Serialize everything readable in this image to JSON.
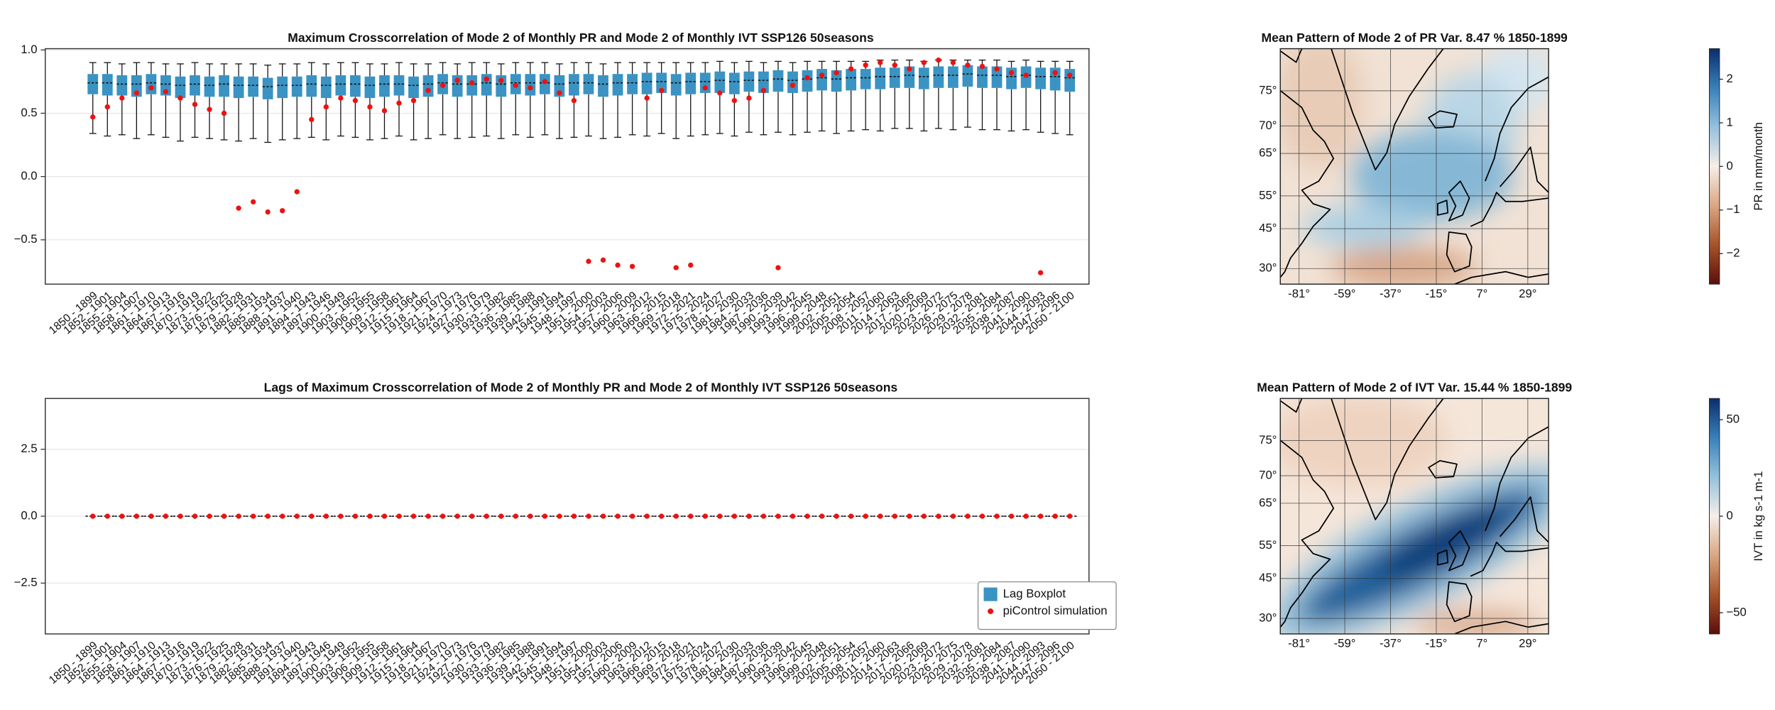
{
  "chart_data": [
    {
      "type": "boxplot",
      "title": "Maximum  Crosscorrelation of Mode 2 of Monthly PR and Mode 2 of Monthly IVT SSP126 50seasons",
      "categories": [
        "1850 - 1899",
        "1852 - 1901",
        "1855 - 1904",
        "1858 - 1907",
        "1861 - 1910",
        "1864 - 1913",
        "1867 - 1916",
        "1870 - 1919",
        "1873 - 1922",
        "1876 - 1925",
        "1879 - 1928",
        "1882 - 1931",
        "1885 - 1934",
        "1888 - 1937",
        "1891 - 1940",
        "1894 - 1943",
        "1897 - 1946",
        "1900 - 1949",
        "1903 - 1952",
        "1906 - 1955",
        "1909 - 1958",
        "1912 - 1961",
        "1915 - 1964",
        "1918 - 1967",
        "1921 - 1970",
        "1924 - 1973",
        "1927 - 1976",
        "1930 - 1979",
        "1933 - 1982",
        "1936 - 1985",
        "1939 - 1988",
        "1942 - 1991",
        "1945 - 1994",
        "1948 - 1997",
        "1951 - 2000",
        "1954 - 2003",
        "1957 - 2006",
        "1960 - 2009",
        "1963 - 2012",
        "1966 - 2015",
        "1969 - 2018",
        "1972 - 2021",
        "1975 - 2024",
        "1978 - 2027",
        "1981 - 2030",
        "1984 - 2033",
        "1987 - 2036",
        "1990 - 2039",
        "1993 - 2042",
        "1996 - 2045",
        "1999 - 2048",
        "2002 - 2051",
        "2005 - 2054",
        "2008 - 2057",
        "2011 - 2060",
        "2014 - 2063",
        "2017 - 2066",
        "2020 - 2069",
        "2023 - 2072",
        "2026 - 2075",
        "2029 - 2078",
        "2032 - 2081",
        "2035 - 2084",
        "2038 - 2087",
        "2041 - 2090",
        "2044 - 2093",
        "2047 - 2096",
        "2050 - 2100"
      ],
      "boxplot": {
        "color": "#3a93c3",
        "whislo": [
          0.34,
          0.32,
          0.33,
          0.3,
          0.33,
          0.31,
          0.28,
          0.31,
          0.3,
          0.29,
          0.28,
          0.3,
          0.27,
          0.29,
          0.3,
          0.31,
          0.29,
          0.32,
          0.31,
          0.29,
          0.3,
          0.32,
          0.29,
          0.3,
          0.33,
          0.3,
          0.31,
          0.32,
          0.3,
          0.33,
          0.31,
          0.33,
          0.3,
          0.31,
          0.32,
          0.3,
          0.31,
          0.33,
          0.32,
          0.34,
          0.3,
          0.32,
          0.33,
          0.34,
          0.32,
          0.35,
          0.33,
          0.35,
          0.33,
          0.35,
          0.36,
          0.34,
          0.36,
          0.37,
          0.36,
          0.38,
          0.38,
          0.36,
          0.38,
          0.37,
          0.39,
          0.37,
          0.37,
          0.36,
          0.37,
          0.35,
          0.34,
          0.33
        ],
        "q1": [
          0.65,
          0.64,
          0.64,
          0.63,
          0.65,
          0.64,
          0.62,
          0.64,
          0.63,
          0.63,
          0.62,
          0.63,
          0.61,
          0.62,
          0.63,
          0.63,
          0.62,
          0.64,
          0.63,
          0.62,
          0.63,
          0.64,
          0.62,
          0.63,
          0.65,
          0.63,
          0.64,
          0.64,
          0.63,
          0.65,
          0.64,
          0.65,
          0.63,
          0.64,
          0.65,
          0.63,
          0.64,
          0.65,
          0.65,
          0.66,
          0.64,
          0.65,
          0.66,
          0.66,
          0.65,
          0.67,
          0.66,
          0.67,
          0.66,
          0.67,
          0.68,
          0.67,
          0.68,
          0.69,
          0.69,
          0.7,
          0.7,
          0.69,
          0.7,
          0.7,
          0.71,
          0.7,
          0.7,
          0.69,
          0.7,
          0.69,
          0.68,
          0.67
        ],
        "median": [
          0.74,
          0.74,
          0.73,
          0.73,
          0.74,
          0.73,
          0.72,
          0.73,
          0.72,
          0.73,
          0.72,
          0.72,
          0.71,
          0.72,
          0.72,
          0.73,
          0.72,
          0.73,
          0.73,
          0.72,
          0.73,
          0.73,
          0.72,
          0.73,
          0.74,
          0.73,
          0.73,
          0.74,
          0.73,
          0.74,
          0.74,
          0.74,
          0.73,
          0.74,
          0.74,
          0.73,
          0.74,
          0.74,
          0.75,
          0.75,
          0.74,
          0.75,
          0.75,
          0.76,
          0.75,
          0.76,
          0.76,
          0.77,
          0.76,
          0.77,
          0.78,
          0.77,
          0.78,
          0.78,
          0.79,
          0.79,
          0.8,
          0.79,
          0.8,
          0.8,
          0.81,
          0.8,
          0.8,
          0.79,
          0.8,
          0.79,
          0.79,
          0.78
        ],
        "q3": [
          0.81,
          0.81,
          0.8,
          0.8,
          0.81,
          0.8,
          0.79,
          0.8,
          0.79,
          0.8,
          0.79,
          0.79,
          0.78,
          0.79,
          0.79,
          0.8,
          0.79,
          0.8,
          0.8,
          0.79,
          0.8,
          0.8,
          0.79,
          0.8,
          0.81,
          0.8,
          0.8,
          0.81,
          0.8,
          0.81,
          0.81,
          0.81,
          0.8,
          0.81,
          0.81,
          0.8,
          0.81,
          0.81,
          0.82,
          0.82,
          0.81,
          0.82,
          0.82,
          0.83,
          0.82,
          0.83,
          0.83,
          0.84,
          0.83,
          0.84,
          0.85,
          0.84,
          0.85,
          0.85,
          0.86,
          0.86,
          0.87,
          0.86,
          0.87,
          0.87,
          0.88,
          0.87,
          0.87,
          0.86,
          0.87,
          0.86,
          0.86,
          0.85
        ],
        "whishi": [
          0.9,
          0.9,
          0.89,
          0.9,
          0.9,
          0.89,
          0.89,
          0.9,
          0.89,
          0.89,
          0.89,
          0.89,
          0.88,
          0.89,
          0.89,
          0.9,
          0.89,
          0.9,
          0.9,
          0.89,
          0.89,
          0.9,
          0.89,
          0.89,
          0.9,
          0.89,
          0.9,
          0.9,
          0.89,
          0.9,
          0.9,
          0.9,
          0.89,
          0.9,
          0.9,
          0.89,
          0.9,
          0.9,
          0.9,
          0.9,
          0.9,
          0.9,
          0.9,
          0.91,
          0.9,
          0.91,
          0.9,
          0.91,
          0.9,
          0.91,
          0.91,
          0.91,
          0.91,
          0.91,
          0.92,
          0.92,
          0.92,
          0.91,
          0.92,
          0.92,
          0.92,
          0.92,
          0.92,
          0.91,
          0.92,
          0.91,
          0.91,
          0.91
        ]
      },
      "points": {
        "color": "#ee1111",
        "values": [
          0.47,
          0.55,
          0.62,
          0.66,
          0.7,
          0.67,
          0.62,
          0.57,
          0.53,
          0.5,
          -0.25,
          -0.2,
          -0.28,
          -0.27,
          -0.12,
          0.45,
          0.55,
          0.62,
          0.6,
          0.55,
          0.52,
          0.58,
          0.6,
          0.68,
          0.72,
          0.76,
          0.74,
          0.77,
          0.76,
          0.72,
          0.7,
          0.75,
          0.66,
          0.6,
          -0.67,
          -0.66,
          -0.7,
          -0.71,
          0.62,
          0.68,
          -0.72,
          -0.7,
          0.7,
          0.66,
          0.6,
          0.62,
          0.68,
          -0.72,
          0.72,
          0.78,
          0.8,
          0.82,
          0.85,
          0.88,
          0.9,
          0.88,
          0.85,
          0.9,
          0.92,
          0.9,
          0.88,
          0.87,
          0.85,
          0.82,
          0.8,
          -0.76,
          0.82,
          0.8
        ]
      },
      "ylim": [
        -0.85,
        1.01
      ],
      "yticks": [
        {
          "value": 1,
          "label": "1.0"
        },
        0.5,
        {
          "value": 0,
          "label": "0.0"
        },
        {
          "value": -0.5,
          "label": "−0.5"
        }
      ],
      "grid": true
    },
    {
      "type": "map",
      "title": "Mean Pattern of Mode 2 of PR Var. 8.47 % 1850-1899",
      "xlim": [
        -90,
        39
      ],
      "ylim": [
        23.4,
        79.4
      ],
      "xticks": [
        {
          "value": -81,
          "label": "-81°"
        },
        {
          "value": -59,
          "label": "-59°"
        },
        {
          "value": -37,
          "label": "-37°"
        },
        {
          "value": -15,
          "label": "-15°"
        },
        {
          "value": 7,
          "label": "7°"
        },
        {
          "value": 29,
          "label": "29°"
        }
      ],
      "yticks": [
        {
          "value": 75,
          "label": "75°"
        },
        {
          "value": 70,
          "label": "70°"
        },
        {
          "value": 65,
          "label": "65°"
        },
        {
          "value": 55,
          "label": "55°"
        },
        {
          "value": 45,
          "label": "45°"
        },
        {
          "value": 30,
          "label": "30°"
        }
      ],
      "colorbar": {
        "label": "PR in mm/month",
        "lim": [
          -2.7,
          2.7
        ],
        "ticks": [
          2,
          1,
          0,
          {
            "value": -1,
            "label": "−1"
          },
          {
            "value": -2,
            "label": "−2"
          }
        ],
        "colormap": [
          "#5a0f0c",
          "#a4532a",
          "#d9a784",
          "#f6eee8",
          "#95c1dc",
          "#3a80b9",
          "#0b2d6b"
        ]
      }
    },
    {
      "type": "boxplot",
      "title": "Lags of Maximum  Crosscorrelation of Mode 2 of Monthly PR and Mode 2 of Monthly IVT SSP126 50seasons",
      "categories": [
        "1850 - 1899",
        "1852 - 1901",
        "1855 - 1904",
        "1858 - 1907",
        "1861 - 1910",
        "1864 - 1913",
        "1867 - 1916",
        "1870 - 1919",
        "1873 - 1922",
        "1876 - 1925",
        "1879 - 1928",
        "1882 - 1931",
        "1885 - 1934",
        "1888 - 1937",
        "1891 - 1940",
        "1894 - 1943",
        "1897 - 1946",
        "1900 - 1949",
        "1903 - 1952",
        "1906 - 1955",
        "1909 - 1958",
        "1912 - 1961",
        "1915 - 1964",
        "1918 - 1967",
        "1921 - 1970",
        "1924 - 1973",
        "1927 - 1976",
        "1930 - 1979",
        "1933 - 1982",
        "1936 - 1985",
        "1939 - 1988",
        "1942 - 1991",
        "1945 - 1994",
        "1948 - 1997",
        "1951 - 2000",
        "1954 - 2003",
        "1957 - 2006",
        "1960 - 2009",
        "1963 - 2012",
        "1966 - 2015",
        "1969 - 2018",
        "1972 - 2021",
        "1975 - 2024",
        "1978 - 2027",
        "1981 - 2030",
        "1984 - 2033",
        "1987 - 2036",
        "1990 - 2039",
        "1993 - 2042",
        "1996 - 2045",
        "1999 - 2048",
        "2002 - 2051",
        "2005 - 2054",
        "2008 - 2057",
        "2011 - 2060",
        "2014 - 2063",
        "2017 - 2066",
        "2020 - 2069",
        "2023 - 2072",
        "2026 - 2075",
        "2029 - 2078",
        "2032 - 2081",
        "2035 - 2084",
        "2038 - 2087",
        "2041 - 2090",
        "2044 - 2093",
        "2047 - 2096",
        "2050 - 2100"
      ],
      "series": [
        {
          "name": "Lag Boxplot",
          "color": "#3a93c3",
          "median": [
            0,
            0,
            0,
            0,
            0,
            0,
            0,
            0,
            0,
            0,
            0,
            0,
            0,
            0,
            0,
            0,
            0,
            0,
            0,
            0,
            0,
            0,
            0,
            0,
            0,
            0,
            0,
            0,
            0,
            0,
            0,
            0,
            0,
            0,
            0,
            0,
            0,
            0,
            0,
            0,
            0,
            0,
            0,
            0,
            0,
            0,
            0,
            0,
            0,
            0,
            0,
            0,
            0,
            0,
            0,
            0,
            0,
            0,
            0,
            0,
            0,
            0,
            0,
            0,
            0,
            0,
            0,
            0
          ]
        },
        {
          "name": "piControl simulation",
          "color": "#ee1111",
          "values": [
            0,
            0,
            0,
            0,
            0,
            0,
            0,
            0,
            0,
            0,
            0,
            0,
            0,
            0,
            0,
            0,
            0,
            0,
            0,
            0,
            0,
            0,
            0,
            0,
            0,
            0,
            0,
            0,
            0,
            0,
            0,
            0,
            0,
            0,
            0,
            0,
            0,
            0,
            0,
            0,
            0,
            0,
            0,
            0,
            0,
            0,
            0,
            0,
            0,
            0,
            0,
            0,
            0,
            0,
            0,
            0,
            0,
            0,
            0,
            0,
            0,
            0,
            0,
            0,
            0,
            0,
            0,
            0
          ]
        }
      ],
      "ylim": [
        -4.4,
        4.4
      ],
      "yticks": [
        2.5,
        {
          "value": 0,
          "label": "0.0"
        },
        {
          "value": -2.5,
          "label": "−2.5"
        }
      ],
      "grid": true,
      "legend": "lower right"
    },
    {
      "type": "map",
      "title": "Mean Pattern of Mode 2 of IVT Var. 15.44 % 1850-1899",
      "xlim": [
        -90,
        39
      ],
      "ylim": [
        23.4,
        79.4
      ],
      "xticks": [
        {
          "value": -81,
          "label": "-81°"
        },
        {
          "value": -59,
          "label": "-59°"
        },
        {
          "value": -37,
          "label": "-37°"
        },
        {
          "value": -15,
          "label": "-15°"
        },
        {
          "value": 7,
          "label": "7°"
        },
        {
          "value": 29,
          "label": "29°"
        }
      ],
      "yticks": [
        {
          "value": 75,
          "label": "75°"
        },
        {
          "value": 70,
          "label": "70°"
        },
        {
          "value": 65,
          "label": "65°"
        },
        {
          "value": 55,
          "label": "55°"
        },
        {
          "value": 45,
          "label": "45°"
        },
        {
          "value": 30,
          "label": "30°"
        }
      ],
      "colorbar": {
        "label": "IVT in kg s-1 m-1",
        "lim": [
          -61,
          61
        ],
        "ticks": [
          50,
          0,
          {
            "value": -50,
            "label": "−50"
          }
        ],
        "colormap": [
          "#5a0f0c",
          "#a4532a",
          "#d9a784",
          "#f6eee8",
          "#95c1dc",
          "#3a80b9",
          "#0b2d6b"
        ]
      }
    }
  ]
}
